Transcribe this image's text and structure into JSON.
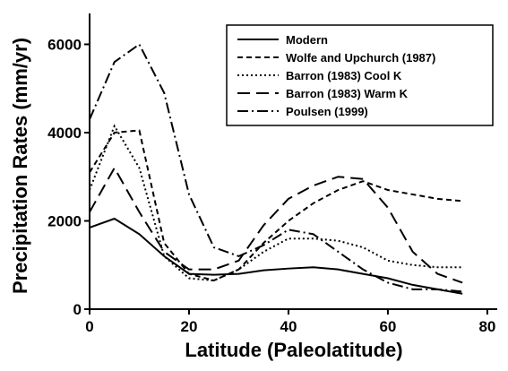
{
  "chart_data": {
    "type": "line",
    "x_label": "Latitude (Paleolatitude)",
    "y_label": "Precipitation Rates (mm/yr)",
    "x": [
      0,
      5,
      10,
      15,
      20,
      25,
      30,
      35,
      40,
      45,
      50,
      55,
      60,
      65,
      70,
      75
    ],
    "xlim": [
      0,
      82
    ],
    "xticks": [
      0,
      20,
      40,
      60,
      80
    ],
    "ylim": [
      0,
      6700
    ],
    "yticks": [
      0,
      2000,
      4000,
      6000
    ],
    "legend": "upper right",
    "series": [
      {
        "name": "Modern",
        "color": "#000000",
        "dash": "solid",
        "values": [
          1850,
          2050,
          1700,
          1200,
          800,
          780,
          800,
          880,
          920,
          950,
          900,
          800,
          700,
          550,
          450,
          350
        ]
      },
      {
        "name": "Wolfe and Upchurch (1987)",
        "color": "#000000",
        "dash": "short",
        "values": [
          3100,
          4000,
          4050,
          1500,
          800,
          650,
          900,
          1500,
          2000,
          2400,
          2700,
          2900,
          2700,
          2600,
          2500,
          2450
        ]
      },
      {
        "name": "Barron (1983) Cool K",
        "color": "#000000",
        "dash": "dot",
        "values": [
          2700,
          4150,
          3200,
          1200,
          700,
          650,
          900,
          1300,
          1600,
          1600,
          1550,
          1400,
          1100,
          1000,
          950,
          950
        ]
      },
      {
        "name": "Barron (1983) Warm K",
        "color": "#000000",
        "dash": "long",
        "values": [
          2200,
          3200,
          2200,
          1300,
          900,
          900,
          1100,
          1900,
          2500,
          2800,
          3000,
          2950,
          2300,
          1300,
          800,
          600
        ]
      },
      {
        "name": "Poulsen (1999)",
        "color": "#000000",
        "dash": "dashdot",
        "values": [
          4300,
          5600,
          6000,
          4900,
          2600,
          1400,
          1200,
          1450,
          1800,
          1700,
          1300,
          900,
          600,
          450,
          450,
          400
        ]
      }
    ]
  }
}
